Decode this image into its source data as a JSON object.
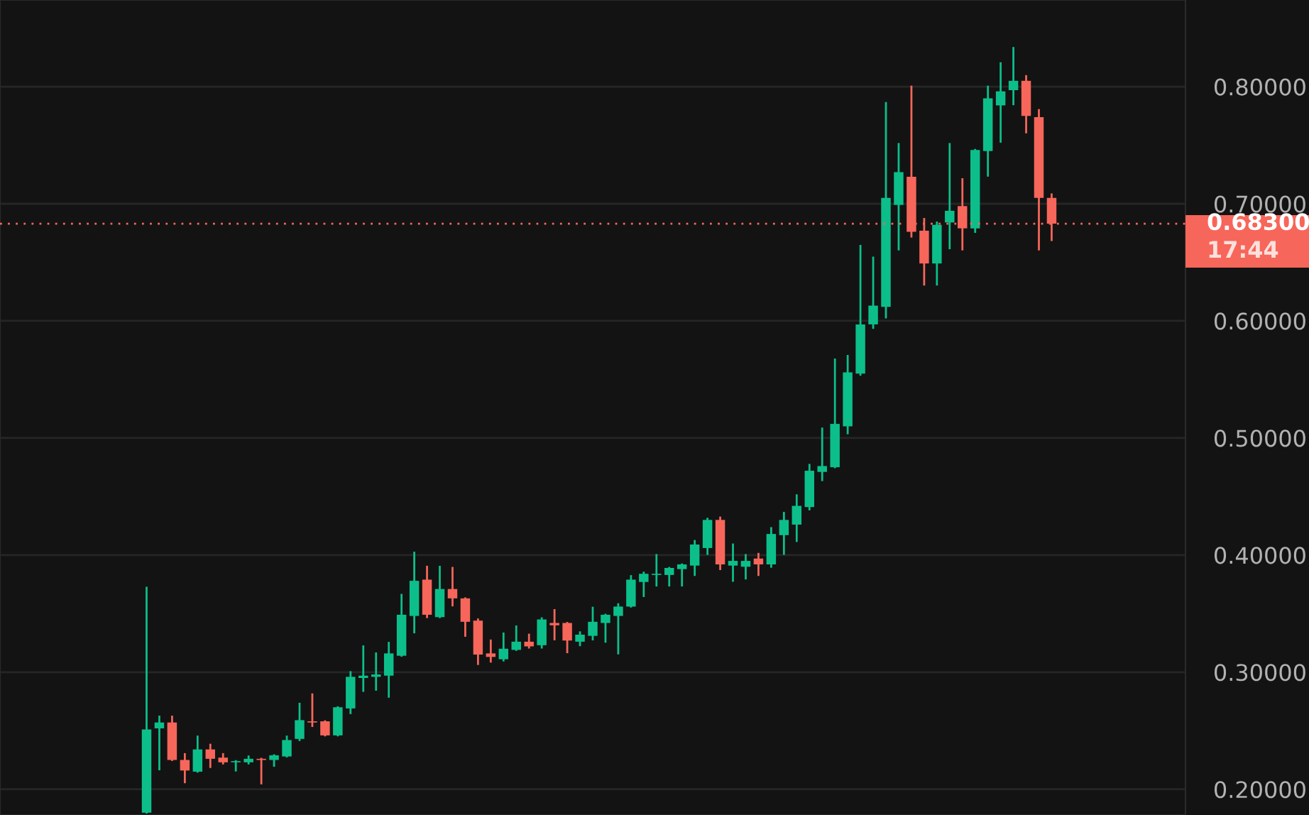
{
  "chart_data": {
    "type": "candlestick",
    "categories": [
      null,
      null,
      null,
      null,
      null,
      null,
      null,
      null,
      null,
      null,
      null,
      null,
      null,
      null,
      null,
      null,
      null,
      null,
      null,
      null,
      null,
      null,
      null,
      null,
      null,
      null,
      null,
      null,
      null,
      null,
      null,
      null,
      null,
      null,
      null,
      null,
      null,
      null,
      null,
      null,
      null,
      null,
      null,
      null,
      null,
      null,
      null,
      null,
      null,
      null,
      null,
      null,
      null,
      null,
      null,
      null,
      null,
      null,
      null,
      null,
      null,
      null,
      null,
      null,
      null,
      null,
      null,
      null,
      null,
      null,
      null,
      null,
      null,
      null,
      null,
      null,
      null,
      null,
      null,
      null,
      null,
      null,
      null,
      null,
      null,
      null,
      null,
      null,
      null,
      null,
      null,
      null,
      null
    ],
    "ohlc": [
      null,
      null,
      null,
      null,
      null,
      null,
      null,
      null,
      null,
      null,
      null,
      [
        0.18,
        0.372,
        0.18,
        0.251
      ],
      [
        0.252,
        0.262,
        0.217,
        0.257
      ],
      [
        0.257,
        0.262,
        0.225,
        0.225
      ],
      [
        0.225,
        0.23,
        0.206,
        0.216
      ],
      [
        0.215,
        0.245,
        0.215,
        0.234
      ],
      [
        0.234,
        0.238,
        0.219,
        0.226
      ],
      [
        0.227,
        0.23,
        0.222,
        0.223
      ],
      [
        0.223,
        0.224,
        0.216,
        0.224
      ],
      [
        0.223,
        0.228,
        0.222,
        0.226
      ],
      [
        0.226,
        0.226,
        0.205,
        0.225
      ],
      [
        0.225,
        0.229,
        0.22,
        0.229
      ],
      [
        0.228,
        0.245,
        0.228,
        0.242
      ],
      [
        0.243,
        0.273,
        0.242,
        0.259
      ],
      [
        0.258,
        0.281,
        0.254,
        0.257
      ],
      [
        0.258,
        0.258,
        0.246,
        0.246
      ],
      [
        0.246,
        0.27,
        0.246,
        0.27
      ],
      [
        0.269,
        0.3,
        0.265,
        0.296
      ],
      [
        0.295,
        0.322,
        0.284,
        0.297
      ],
      [
        0.296,
        0.316,
        0.285,
        0.298
      ],
      [
        0.297,
        0.325,
        0.279,
        0.316
      ],
      [
        0.314,
        0.366,
        0.314,
        0.349
      ],
      [
        0.348,
        0.402,
        0.334,
        0.378
      ],
      [
        0.379,
        0.39,
        0.347,
        0.349
      ],
      [
        0.347,
        0.39,
        0.347,
        0.371
      ],
      [
        0.371,
        0.389,
        0.357,
        0.363
      ],
      [
        0.363,
        0.363,
        0.331,
        0.343
      ],
      [
        0.344,
        0.345,
        0.307,
        0.315
      ],
      [
        0.316,
        0.327,
        0.309,
        0.313
      ],
      [
        0.311,
        0.333,
        0.31,
        0.32
      ],
      [
        0.319,
        0.339,
        0.319,
        0.326
      ],
      [
        0.326,
        0.332,
        0.321,
        0.322
      ],
      [
        0.323,
        0.346,
        0.321,
        0.345
      ],
      [
        0.342,
        0.353,
        0.328,
        0.34
      ],
      [
        0.342,
        0.342,
        0.317,
        0.327
      ],
      [
        0.326,
        0.334,
        0.323,
        0.332
      ],
      [
        0.331,
        0.355,
        0.328,
        0.343
      ],
      [
        0.342,
        0.349,
        0.326,
        0.349
      ],
      [
        0.348,
        0.358,
        0.316,
        0.356
      ],
      [
        0.356,
        0.382,
        0.356,
        0.379
      ],
      [
        0.377,
        0.385,
        0.365,
        0.384
      ],
      [
        0.383,
        0.4,
        0.374,
        0.384
      ],
      [
        0.383,
        0.389,
        0.374,
        0.389
      ],
      [
        0.388,
        0.392,
        0.374,
        0.392
      ],
      [
        0.391,
        0.412,
        0.383,
        0.409
      ],
      [
        0.406,
        0.431,
        0.401,
        0.43
      ],
      [
        0.43,
        0.432,
        0.388,
        0.392
      ],
      [
        0.391,
        0.409,
        0.378,
        0.395
      ],
      [
        0.39,
        0.4,
        0.38,
        0.395
      ],
      [
        0.397,
        0.401,
        0.383,
        0.392
      ],
      [
        0.392,
        0.423,
        0.39,
        0.418
      ],
      [
        0.417,
        0.436,
        0.401,
        0.43
      ],
      [
        0.426,
        0.451,
        0.412,
        0.442
      ],
      [
        0.441,
        0.477,
        0.439,
        0.472
      ],
      [
        0.471,
        0.508,
        0.464,
        0.476
      ],
      [
        0.475,
        0.567,
        0.475,
        0.512
      ],
      [
        0.51,
        0.57,
        0.504,
        0.556
      ],
      [
        0.555,
        0.664,
        0.554,
        0.597
      ],
      [
        0.597,
        0.654,
        0.594,
        0.613
      ],
      [
        0.612,
        0.786,
        0.603,
        0.705
      ],
      [
        0.699,
        0.751,
        0.661,
        0.727
      ],
      [
        0.723,
        0.8,
        0.672,
        0.676
      ],
      [
        0.677,
        0.687,
        0.631,
        0.649
      ],
      [
        0.649,
        0.684,
        0.631,
        0.682
      ],
      [
        0.684,
        0.751,
        0.662,
        0.694
      ],
      [
        0.698,
        0.721,
        0.661,
        0.679
      ],
      [
        0.679,
        0.746,
        0.676,
        0.746
      ],
      [
        0.745,
        0.8,
        0.724,
        0.79
      ],
      [
        0.784,
        0.82,
        0.753,
        0.796
      ],
      [
        0.797,
        0.833,
        0.785,
        0.805
      ],
      [
        0.805,
        0.809,
        0.761,
        0.775
      ],
      [
        0.774,
        0.78,
        0.661,
        0.705
      ],
      [
        0.705,
        0.708,
        0.669,
        0.683
      ],
      null,
      null,
      null,
      null,
      null,
      null,
      null,
      null,
      null,
      null
    ],
    "colors": [
      null,
      null,
      null,
      null,
      null,
      null,
      null,
      null,
      null,
      null,
      null,
      "#0cbf8a",
      "#0cbf8a",
      "#f7665a",
      "#f7665a",
      "#0cbf8a",
      "#f7665a",
      "#f7665a",
      "#0cbf8a",
      "#0cbf8a",
      "#f7665a",
      "#0cbf8a",
      "#0cbf8a",
      "#0cbf8a",
      "#f7665a",
      "#f7665a",
      "#0cbf8a",
      "#0cbf8a",
      "#0cbf8a",
      "#0cbf8a",
      "#0cbf8a",
      "#0cbf8a",
      "#0cbf8a",
      "#f7665a",
      "#0cbf8a",
      "#f7665a",
      "#f7665a",
      "#f7665a",
      "#f7665a",
      "#0cbf8a",
      "#0cbf8a",
      "#f7665a",
      "#0cbf8a",
      "#f7665a",
      "#f7665a",
      "#0cbf8a",
      "#0cbf8a",
      "#0cbf8a",
      "#0cbf8a",
      "#0cbf8a",
      "#0cbf8a",
      "#0cbf8a",
      "#0cbf8a",
      "#0cbf8a",
      "#0cbf8a",
      "#0cbf8a",
      "#f7665a",
      "#0cbf8a",
      "#0cbf8a",
      "#f7665a",
      "#0cbf8a",
      "#0cbf8a",
      "#0cbf8a",
      "#0cbf8a",
      "#0cbf8a",
      "#0cbf8a",
      "#0cbf8a",
      "#0cbf8a",
      "#0cbf8a",
      "#0cbf8a",
      "#0cbf8a",
      "#f7665a",
      "#f7665a",
      "#0cbf8a",
      "#0cbf8a",
      "#f7665a",
      "#0cbf8a",
      "#0cbf8a",
      "#0cbf8a",
      "#0cbf8a",
      "#f7665a",
      "#f7665a",
      "#f7665a",
      null,
      null,
      null,
      null,
      null,
      null,
      null,
      null,
      null,
      null
    ],
    "ylim": [
      0.178,
      0.874
    ],
    "yticks": [
      {
        "value": 0.2,
        "label": "0.20000"
      },
      {
        "value": 0.3,
        "label": "0.30000"
      },
      {
        "value": 0.4,
        "label": "0.40000"
      },
      {
        "value": 0.5,
        "label": "0.50000"
      },
      {
        "value": 0.6,
        "label": "0.60000"
      },
      {
        "value": 0.7,
        "label": "0.70000"
      },
      {
        "value": 0.8,
        "label": "0.80000"
      }
    ],
    "tick_labels": "y",
    "grid": "y",
    "ref_lines": [
      {
        "axis": "y",
        "value": 0.683,
        "label": "0.68300",
        "color": "#f7665a",
        "line_style": "dotted"
      }
    ],
    "annotations": [
      "17:44"
    ]
  }
}
